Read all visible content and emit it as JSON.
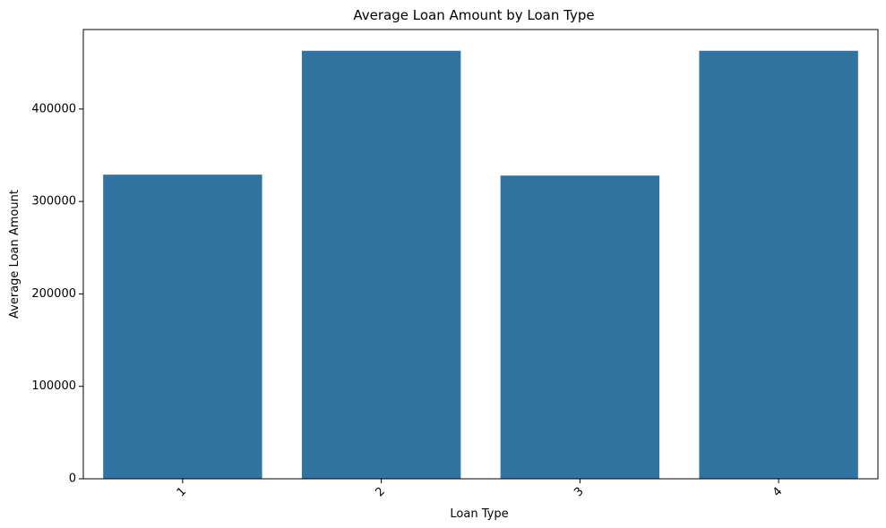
{
  "chart_data": {
    "type": "bar",
    "title": "Average Loan Amount by Loan Type",
    "xlabel": "Loan Type",
    "ylabel": "Average Loan Amount",
    "categories": [
      "1",
      "2",
      "3",
      "4"
    ],
    "values": [
      329000,
      463000,
      328000,
      463000
    ],
    "ylim": [
      0,
      486000
    ],
    "yticks": [
      0,
      100000,
      200000,
      300000,
      400000
    ],
    "ytick_labels": [
      "0",
      "100000",
      "200000",
      "300000",
      "400000"
    ],
    "bar_color": "#3274a1",
    "grid": false,
    "legend": "none",
    "xtick_rotation": "45"
  }
}
